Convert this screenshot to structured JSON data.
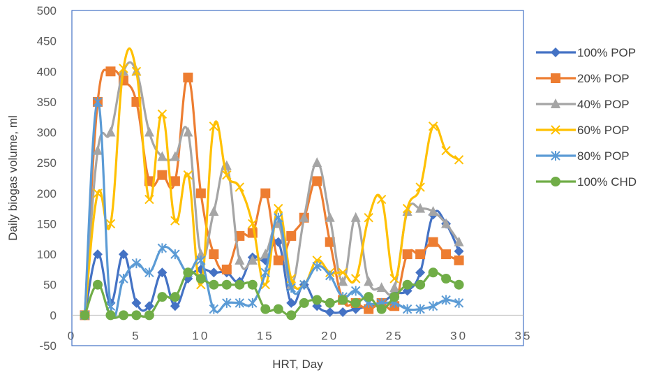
{
  "chart_data": {
    "type": "line",
    "title": "",
    "xlabel": "HRT, Day",
    "ylabel": "Daily biogas volume, ml",
    "xlim": [
      0,
      35
    ],
    "ylim": [
      -50,
      500
    ],
    "xticks": [
      0,
      5,
      10,
      15,
      20,
      25,
      30,
      35
    ],
    "yticks": [
      -50,
      0,
      50,
      100,
      150,
      200,
      250,
      300,
      350,
      400,
      450,
      500
    ],
    "grid": false,
    "legend_position": "right",
    "x": [
      1,
      2,
      3,
      4,
      5,
      6,
      7,
      8,
      9,
      10,
      11,
      12,
      13,
      14,
      15,
      16,
      17,
      18,
      19,
      20,
      21,
      22,
      23,
      24,
      25,
      26,
      27,
      28,
      29,
      30
    ],
    "series": [
      {
        "name": "100% POP",
        "color": "#4472C4",
        "marker": "diamond",
        "values": [
          0,
          100,
          20,
          100,
          20,
          15,
          70,
          15,
          60,
          75,
          70,
          70,
          55,
          95,
          90,
          120,
          20,
          50,
          15,
          5,
          5,
          10,
          15,
          20,
          35,
          40,
          70,
          165,
          150,
          105
        ]
      },
      {
        "name": "20% POP",
        "color": "#ED7D31",
        "marker": "square",
        "values": [
          0,
          350,
          400,
          385,
          350,
          220,
          230,
          220,
          390,
          200,
          100,
          75,
          130,
          135,
          200,
          90,
          130,
          160,
          220,
          120,
          25,
          20,
          10,
          20,
          15,
          100,
          100,
          120,
          100,
          90
        ]
      },
      {
        "name": "40% POP",
        "color": "#A5A5A5",
        "marker": "triangle",
        "values": [
          0,
          270,
          300,
          400,
          400,
          300,
          260,
          260,
          300,
          100,
          170,
          245,
          90,
          90,
          100,
          150,
          50,
          160,
          250,
          160,
          55,
          160,
          55,
          45,
          45,
          170,
          175,
          170,
          150,
          120
        ]
      },
      {
        "name": "60% POP",
        "color": "#FFC000",
        "marker": "x",
        "values": [
          0,
          200,
          150,
          405,
          400,
          190,
          330,
          155,
          230,
          50,
          310,
          230,
          210,
          150,
          50,
          175,
          60,
          50,
          90,
          70,
          70,
          60,
          160,
          190,
          60,
          175,
          210,
          310,
          270,
          255
        ]
      },
      {
        "name": "80% POP",
        "color": "#5B9BD5",
        "marker": "star",
        "values": [
          0,
          350,
          15,
          60,
          85,
          70,
          110,
          100,
          70,
          90,
          10,
          20,
          20,
          20,
          70,
          160,
          45,
          50,
          80,
          65,
          30,
          40,
          20,
          20,
          20,
          10,
          10,
          15,
          25,
          20
        ]
      },
      {
        "name": "100% CHD",
        "color": "#70AD47",
        "marker": "circle",
        "values": [
          0,
          50,
          0,
          0,
          0,
          0,
          30,
          30,
          70,
          60,
          50,
          50,
          50,
          50,
          10,
          10,
          0,
          20,
          25,
          20,
          25,
          20,
          30,
          10,
          30,
          50,
          50,
          70,
          60,
          50
        ]
      }
    ]
  }
}
